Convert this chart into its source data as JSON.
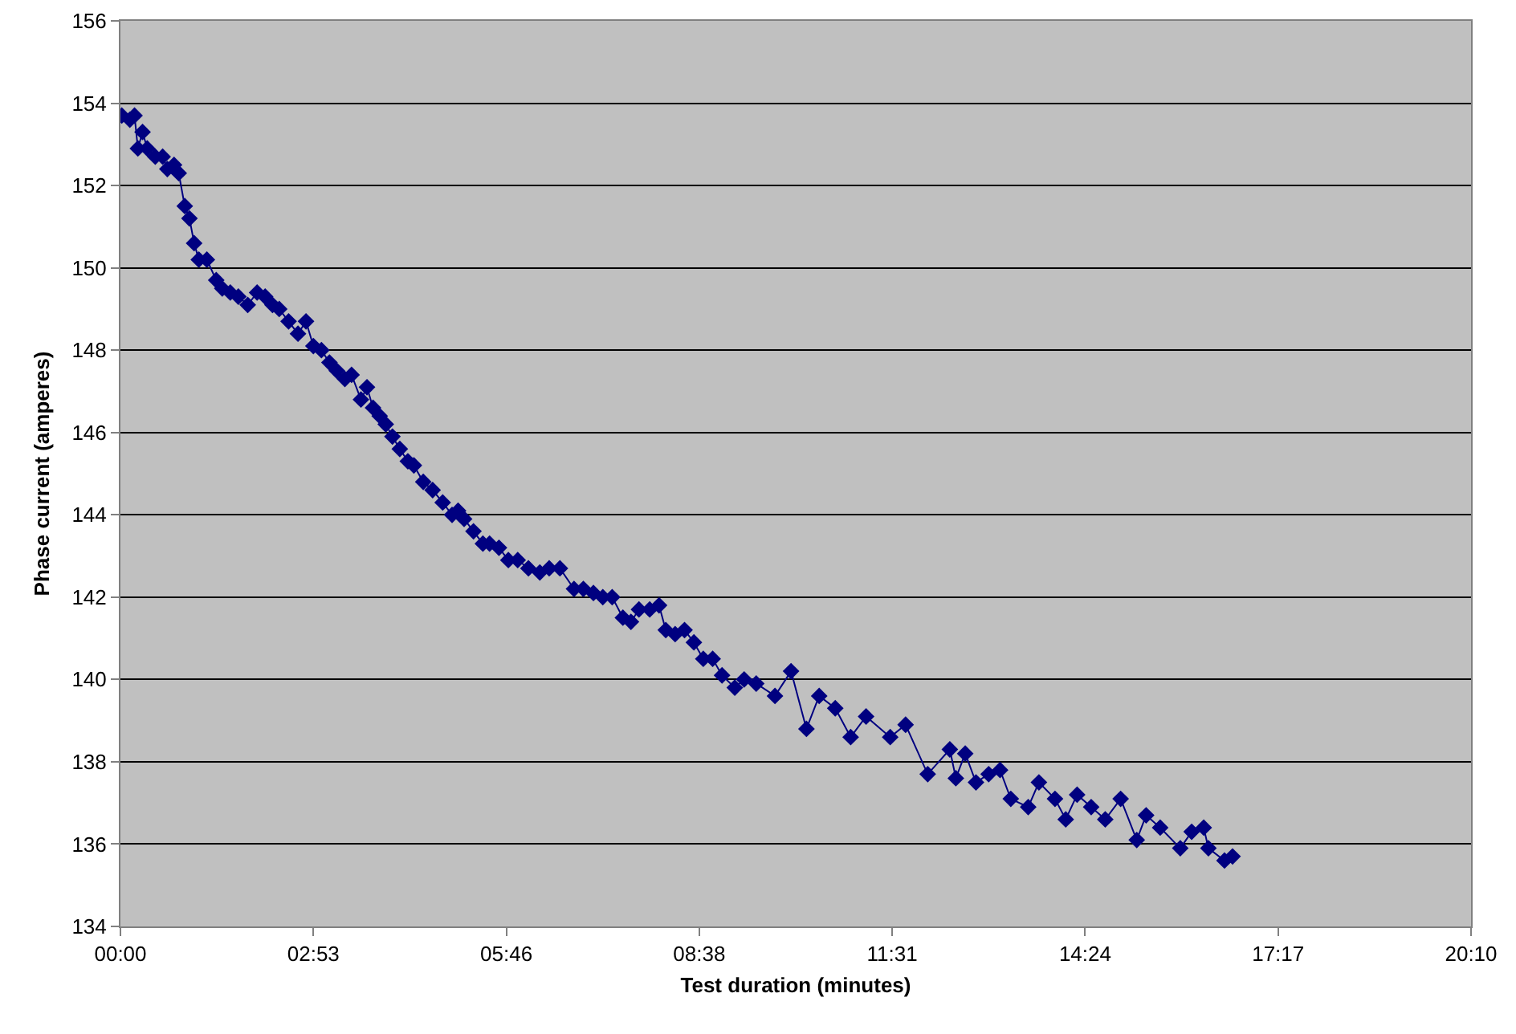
{
  "chart_data": {
    "type": "line",
    "xlabel": "Test duration (minutes)",
    "ylabel": "Phase current (amperes)",
    "x": [
      0.02,
      0.14,
      0.21,
      0.26,
      0.33,
      0.4,
      0.52,
      0.63,
      0.7,
      0.8,
      0.87,
      0.96,
      1.03,
      1.1,
      1.17,
      1.29,
      1.43,
      1.52,
      1.64,
      1.76,
      1.9,
      2.04,
      2.16,
      2.27,
      2.37,
      2.51,
      2.65,
      2.77,
      2.88,
      3.0,
      3.12,
      3.23,
      3.35,
      3.45,
      3.59,
      3.68,
      3.77,
      3.87,
      3.96,
      4.06,
      4.17,
      4.29,
      4.38,
      4.52,
      4.66,
      4.81,
      4.95,
      5.04,
      5.13,
      5.27,
      5.41,
      5.51,
      5.65,
      5.79,
      5.93,
      6.09,
      6.26,
      6.4,
      6.56,
      6.77,
      6.91,
      7.06,
      7.2,
      7.34,
      7.5,
      7.62,
      7.74,
      7.9,
      8.04,
      8.14,
      8.28,
      8.42,
      8.56,
      8.7,
      8.84,
      8.98,
      9.17,
      9.31,
      9.49,
      9.77,
      10.01,
      10.24,
      10.43,
      10.67,
      10.9,
      11.13,
      11.49,
      11.72,
      12.05,
      12.38,
      12.47,
      12.61,
      12.77,
      12.96,
      13.13,
      13.29,
      13.55,
      13.71,
      13.95,
      14.11,
      14.28,
      14.49,
      14.7,
      14.93,
      15.17,
      15.31,
      15.52,
      15.82,
      15.99,
      16.17,
      16.24,
      16.48,
      16.6
    ],
    "series": [
      {
        "color": "#000080",
        "values": [
          153.7,
          153.6,
          153.7,
          152.9,
          153.3,
          152.9,
          152.7,
          152.7,
          152.4,
          152.5,
          152.3,
          151.5,
          151.2,
          150.6,
          150.2,
          150.2,
          149.7,
          149.5,
          149.4,
          149.3,
          149.1,
          149.4,
          149.3,
          149.1,
          149.0,
          148.7,
          148.4,
          148.7,
          148.1,
          148.0,
          147.7,
          147.5,
          147.3,
          147.4,
          146.8,
          147.1,
          146.6,
          146.4,
          146.2,
          145.9,
          145.6,
          145.3,
          145.2,
          144.8,
          144.6,
          144.3,
          144.0,
          144.1,
          143.9,
          143.6,
          143.3,
          143.3,
          143.2,
          142.9,
          142.9,
          142.7,
          142.6,
          142.7,
          142.7,
          142.2,
          142.2,
          142.1,
          142.0,
          142.0,
          141.5,
          141.4,
          141.7,
          141.7,
          141.8,
          141.2,
          141.1,
          141.2,
          140.9,
          140.5,
          140.5,
          140.1,
          139.8,
          140.0,
          139.9,
          139.6,
          140.2,
          138.8,
          139.6,
          139.3,
          138.6,
          139.1,
          138.6,
          138.9,
          137.7,
          138.3,
          137.6,
          138.2,
          137.5,
          137.7,
          137.8,
          137.1,
          136.9,
          137.5,
          137.1,
          136.6,
          137.2,
          136.9,
          136.6,
          137.1,
          136.1,
          136.7,
          136.4,
          135.9,
          136.3,
          136.4,
          135.9,
          135.6,
          135.7
        ]
      }
    ],
    "xlim": [
      0,
      20.16
    ],
    "xticks": [
      {
        "value": 0,
        "label": "00:00"
      },
      {
        "value": 2.88,
        "label": "02:53"
      },
      {
        "value": 5.76,
        "label": "05:46"
      },
      {
        "value": 8.64,
        "label": "08:38"
      },
      {
        "value": 11.52,
        "label": "11:31"
      },
      {
        "value": 14.4,
        "label": "14:24"
      },
      {
        "value": 17.28,
        "label": "17:17"
      },
      {
        "value": 20.16,
        "label": "20:10"
      }
    ],
    "ylim": [
      134,
      156
    ],
    "yticks": [
      134,
      136,
      138,
      140,
      142,
      144,
      146,
      148,
      150,
      152,
      154,
      156
    ],
    "grid": "y",
    "marker": "diamond",
    "line_style": "solid"
  }
}
